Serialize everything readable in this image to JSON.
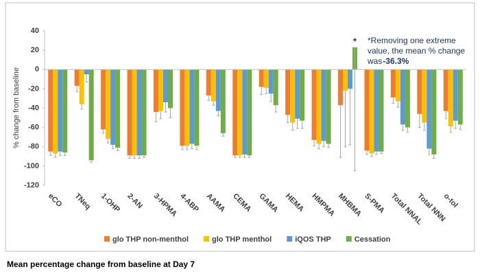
{
  "chart_data": {
    "type": "bar",
    "y_label": "% change from baseline",
    "categories": [
      "eCO",
      "TNeq",
      "1-OHP",
      "2-AN",
      "3-HPMA",
      "4-ABP",
      "AAMA",
      "CEMA",
      "GAMA",
      "HEMA",
      "HMPMA",
      "MHBMA",
      "S-PMA",
      "Total NNAL",
      "Total NNN",
      "o-tol"
    ],
    "series": [
      {
        "name": "glo THP non-menthol",
        "color": "#ed7d31",
        "values": [
          -85,
          -17,
          -62,
          -89,
          -44,
          -79,
          -27,
          -89,
          -18,
          -47,
          -73,
          -37,
          -84,
          -29,
          -46,
          -43
        ],
        "errors": [
          4,
          6,
          4,
          3,
          10,
          4,
          5,
          2,
          8,
          8,
          6,
          54,
          4,
          6,
          14,
          8
        ]
      },
      {
        "name": "glo THP menthol",
        "color": "#ffc000",
        "values": [
          -87,
          -36,
          -72,
          -89,
          -43,
          -79,
          -33,
          -89,
          -19,
          -55,
          -77,
          -22,
          -87,
          -33,
          -55,
          -59
        ],
        "errors": [
          4,
          5,
          4,
          3,
          8,
          4,
          4,
          2,
          6,
          8,
          5,
          58,
          3,
          6,
          8,
          6
        ]
      },
      {
        "name": "iQOS THP",
        "color": "#5b9bd5",
        "values": [
          -85,
          -5,
          -78,
          -89,
          -34,
          -77,
          -43,
          -88,
          -25,
          -51,
          -74,
          -20,
          -85,
          -57,
          -82,
          -53
        ],
        "errors": [
          4,
          8,
          4,
          3,
          10,
          5,
          5,
          3,
          8,
          10,
          6,
          58,
          3,
          6,
          6,
          8
        ]
      },
      {
        "name": "Cessation",
        "color": "#70ad47",
        "values": [
          -86,
          -94,
          -81,
          -89,
          -40,
          -79,
          -66,
          -89,
          -37,
          -53,
          -77,
          23,
          -85,
          -60,
          -88,
          -57
        ],
        "errors": [
          3,
          2,
          3,
          2,
          10,
          4,
          3,
          2,
          7,
          8,
          4,
          128,
          2,
          5,
          4,
          5
        ]
      }
    ],
    "ylim": [
      -120,
      40
    ],
    "yticks": [
      -120,
      -100,
      -80,
      -60,
      -40,
      -20,
      0,
      20,
      40
    ],
    "asterisk_marker": "*",
    "annotation": "*Removing one extreme value, the mean % change was",
    "annotation_emphasis": "-36.3%",
    "caption": "Mean percentage change from baseline at Day 7"
  }
}
